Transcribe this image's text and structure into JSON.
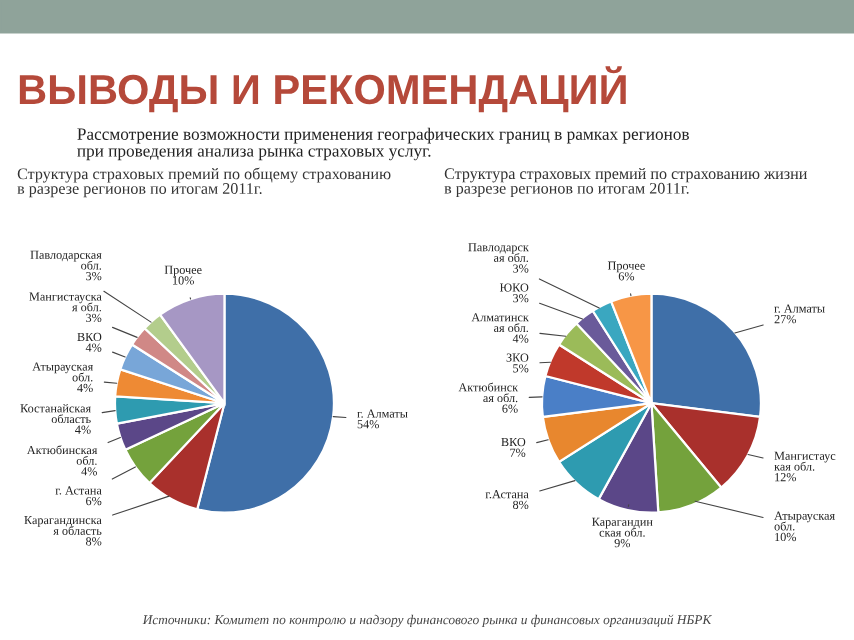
{
  "chart_data": [
    {
      "type": "pie",
      "title": "Структура страховых премий по общему страхованию\nв разрезе регионов по итогам 2011г.",
      "categories": [
        "г. Алматы",
        "Карагандинска\nя область",
        "г. Астана",
        "Актюбинская\nобл.",
        "Костанайская\nобласть",
        "Атырауская\nобл.",
        "ВКО",
        "Мангистауска\nя обл.",
        "Павлодарская\nобл.",
        "Прочее"
      ],
      "values": [
        54,
        8,
        6,
        4,
        4,
        4,
        4,
        3,
        3,
        10
      ],
      "value_labels": [
        "54%",
        "8%",
        "6%",
        "4%",
        "4%",
        "4%",
        "4%",
        "3%",
        "3%",
        "10%"
      ],
      "colors": [
        "#3f6fa8",
        "#a9302c",
        "#74a23c",
        "#5b4788",
        "#2e9bb0",
        "#ee8a34",
        "#78a6d8",
        "#d08886",
        "#b3cd8c",
        "#a697c4"
      ],
      "annotations": [
        "ВЫВОДЫ И РЕКОМЕНДАЦИЙ",
        "Рассмотрение возможности применения географических границ в рамках регионов\nпри проведения анализа рынка страховых услуг.",
        "Источники: Комитет по контролю и надзору финансового рынка и финансовых организаций НБРК"
      ]
    },
    {
      "type": "pie",
      "title": "Структура страховых премий по страхованию жизни\nв разрезе регионов по итогам 2011г.",
      "categories": [
        "г. Алматы",
        "Мангистаус\nкая обл.",
        "Атырауская\nобл.",
        "Карагандин\nская обл.",
        "г.Астана",
        "ВКО",
        "Актюбинск\nая обл.",
        "ЗКО",
        "Алматинск\nая обл.",
        "ЮКО",
        "Павлодарск\nая обл.",
        "Прочее"
      ],
      "values": [
        27,
        12,
        10,
        9,
        8,
        7,
        6,
        5,
        4,
        3,
        3,
        6
      ],
      "value_labels": [
        "27%",
        "12%",
        "10%",
        "9%",
        "8%",
        "7%",
        "6%",
        "5%",
        "4%",
        "3%",
        "3%",
        "6%"
      ],
      "colors": [
        "#3f6fa8",
        "#a9302c",
        "#74a23c",
        "#5b4788",
        "#2e9bb0",
        "#e8872e",
        "#4a7fc7",
        "#c0392b",
        "#9bbb59",
        "#6a5a9a",
        "#3aa7c0",
        "#f79646"
      ]
    }
  ]
}
